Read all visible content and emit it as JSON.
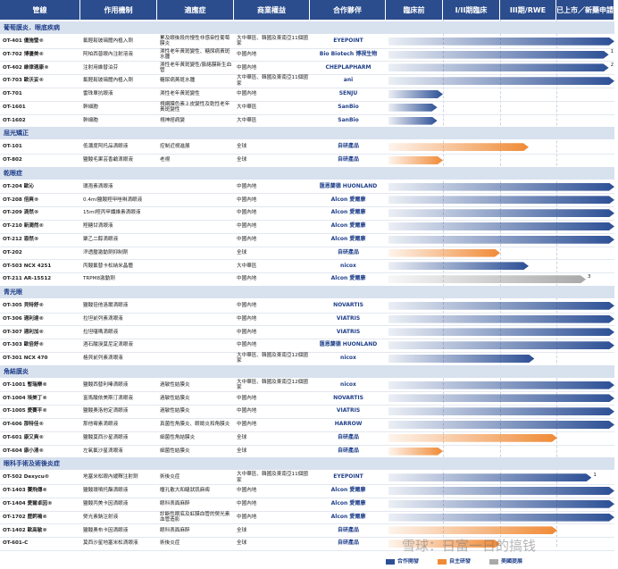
{
  "header": {
    "columns": [
      "管線",
      "作用機制",
      "適應症",
      "商業權益",
      "合作夥伴",
      "臨床前",
      "I/II期臨床",
      "III期/RWE",
      "已上市／新藥申請"
    ]
  },
  "sections": [
    {
      "title": "葡萄膜炎．眼底疾病",
      "rows": [
        {
          "pipeline": "OT-401 優施瑩®",
          "mechanism": "氟輕鬆玻璃體內植入劑",
          "indication": "累及眼後段的慢性非感染性葡萄膜炎",
          "rights": "大中華區、韓國及東南亞11個國家",
          "partner": "EYEPOINT",
          "progress": 4,
          "color": "#2c4f95"
        },
        {
          "pipeline": "OT-702 博優美®",
          "mechanism": "阿柏西普眼內注射溶液",
          "indication": "濕性老年黃斑變性、糖尿病黃斑水腫",
          "rights": "中國內地",
          "partner": "Bio Biotech 博視生物",
          "progress": 3.9,
          "color": "#2c4f95",
          "note": "1"
        },
        {
          "pipeline": "OT-402 維律適康®",
          "mechanism": "注射用維替泊芬",
          "indication": "濕性老年黃斑變性/脈絡膜新生血管",
          "rights": "中國內地",
          "partner": "CHEPLAPHARM",
          "progress": 3.9,
          "color": "#2c4f95",
          "note": "2"
        },
        {
          "pipeline": "OT-703 歐沃妥®",
          "mechanism": "氟輕鬆玻璃體內植入劑",
          "indication": "糖尿病黃斑水腫",
          "rights": "大中華區、韓國及東南亞11個國家",
          "partner": "ani",
          "progress": 4,
          "color": "#2c4f95"
        },
        {
          "pipeline": "OT-701",
          "mechanism": "雷珠單抗眼液",
          "indication": "濕性老年黃斑變性",
          "rights": "中國內地",
          "partner": "SENJU",
          "progress": 1,
          "color": "#2c4f95"
        },
        {
          "pipeline": "OT-1601",
          "mechanism": "幹細胞",
          "indication": "視網膜色素上皮變性及乾性老年黃斑變性",
          "rights": "大中華區",
          "partner": "SanBio",
          "progress": 0.9,
          "color": "#2c4f95"
        },
        {
          "pipeline": "OT-1602",
          "mechanism": "幹細胞",
          "indication": "視神經病變",
          "rights": "大中華區",
          "partner": "SanBio",
          "progress": 0.9,
          "color": "#2c4f95"
        }
      ]
    },
    {
      "title": "屈光矯正",
      "rows": [
        {
          "pipeline": "OT-101",
          "mechanism": "低濃度阿托品滴眼液",
          "indication": "控制近視進展",
          "rights": "全球",
          "partner": "自研產品",
          "progress": 2.5,
          "color": "#f08a36"
        },
        {
          "pipeline": "OT-802",
          "mechanism": "鹽酸毛果芸香鹼滴眼液",
          "indication": "老視",
          "rights": "全球",
          "partner": "自研產品",
          "progress": 1,
          "color": "#f08a36"
        }
      ]
    },
    {
      "title": "乾眼症",
      "rows": [
        {
          "pipeline": "OT-204 歐沁",
          "mechanism": "環孢素滴眼液",
          "indication": "",
          "rights": "中國內地",
          "partner": "匯恩蘭德 HUONLAND",
          "progress": 4,
          "color": "#2c4f95"
        },
        {
          "pipeline": "OT-208 倍爽®",
          "mechanism": "0.4ml鹽酸羥甲唑啉滴眼液",
          "indication": "",
          "rights": "中國內地",
          "partner": "Alcon 愛爾康",
          "progress": 4,
          "color": "#2c4f95"
        },
        {
          "pipeline": "OT-209 滴然®",
          "mechanism": "15ml羥丙甲纖維素滴眼液",
          "indication": "",
          "rights": "中國內地",
          "partner": "Alcon 愛爾康",
          "progress": 4,
          "color": "#2c4f95"
        },
        {
          "pipeline": "OT-210 新潤然®",
          "mechanism": "羥糖甘滴眼液",
          "indication": "",
          "rights": "中國內地",
          "partner": "Alcon 愛爾康",
          "progress": 4,
          "color": "#2c4f95"
        },
        {
          "pipeline": "OT-212 恩然®",
          "mechanism": "聚乙二醇滴眼液",
          "indication": "",
          "rights": "中國內地",
          "partner": "Alcon 愛爾康",
          "progress": 4,
          "color": "#2c4f95"
        },
        {
          "pipeline": "OT-202",
          "mechanism": "滲透壓激動劑抑制劑",
          "indication": "",
          "rights": "全球",
          "partner": "自研產品",
          "progress": 2,
          "color": "#f08a36"
        },
        {
          "pipeline": "OT-503 NCX 4251",
          "mechanism": "丙酸氟替卡松納米晶體",
          "indication": "",
          "rights": "大中華區",
          "partner": "nicox",
          "progress": 2.5,
          "color": "#2c4f95"
        },
        {
          "pipeline": "OT-211 AR-15512",
          "mechanism": "TRPM8激動劑",
          "indication": "",
          "rights": "中國內地",
          "partner": "Alcon 愛爾康",
          "progress": 3.5,
          "color": "#a9a9a9",
          "note": "3"
        }
      ]
    },
    {
      "title": "青光眼",
      "rows": [
        {
          "pipeline": "OT-305 貝特舒®",
          "mechanism": "鹽酸倍他洛爾滴眼液",
          "indication": "",
          "rights": "中國內地",
          "partner": "NOVARTIS",
          "progress": 4,
          "color": "#2c4f95"
        },
        {
          "pipeline": "OT-306 適利達®",
          "mechanism": "拉坦前列素滴眼液",
          "indication": "",
          "rights": "中國內地",
          "partner": "VIATRIS",
          "progress": 4,
          "color": "#2c4f95"
        },
        {
          "pipeline": "OT-307 適利加®",
          "mechanism": "拉坦噻嗎滴眼液",
          "indication": "",
          "rights": "中國內地",
          "partner": "VIATRIS",
          "progress": 4,
          "color": "#2c4f95"
        },
        {
          "pipeline": "OT-303 歐倍舒®",
          "mechanism": "酒石酸溴莫尼定滴眼液",
          "indication": "",
          "rights": "中國內地",
          "partner": "匯恩蘭德 HUONLAND",
          "progress": 4,
          "color": "#2c4f95"
        },
        {
          "pipeline": "OT-301 NCX 470",
          "mechanism": "格貝前列素滴眼液",
          "indication": "",
          "rights": "大中華區、韓國及東南亞12個國家",
          "partner": "nicox",
          "progress": 2.6,
          "color": "#2c4f95"
        }
      ]
    },
    {
      "title": "角結膜炎",
      "rows": [
        {
          "pipeline": "OT-1001 暫瑞樂®",
          "mechanism": "鹽酸西替利嗪滴眼液",
          "indication": "過敏性結膜炎",
          "rights": "大中華區、韓國及東南亞12個國家",
          "partner": "nicox",
          "progress": 4,
          "color": "#2c4f95"
        },
        {
          "pipeline": "OT-1004 埃美丁®",
          "mechanism": "富馬酸依美斯汀滴眼液",
          "indication": "過敏性結膜炎",
          "rights": "中國內地",
          "partner": "NOVARTIS",
          "progress": 4,
          "color": "#2c4f95"
        },
        {
          "pipeline": "OT-1005 愛賽平®",
          "mechanism": "鹽酸奧洛他定滴眼液",
          "indication": "過敏性結膜炎",
          "rights": "中國內地",
          "partner": "VIATRIS",
          "progress": 4,
          "color": "#2c4f95"
        },
        {
          "pipeline": "OT-606 那特佳®",
          "mechanism": "那他霉素滴眼液",
          "indication": "真菌性角膜炎、眼瞼炎和角膜炎",
          "rights": "中國內地",
          "partner": "HARROW",
          "progress": 4,
          "color": "#2c4f95"
        },
        {
          "pipeline": "OT-601 康又爽®",
          "mechanism": "鹽酸莫西沙星滴眼液",
          "indication": "細菌性角結膜炎",
          "rights": "全球",
          "partner": "自研產品",
          "progress": 3,
          "color": "#f08a36"
        },
        {
          "pipeline": "OT-604 康小清®",
          "mechanism": "左氧氟沙星滴眼液",
          "indication": "細菌性結膜炎",
          "rights": "全球",
          "partner": "自研產品",
          "progress": 1,
          "color": "#f08a36"
        }
      ]
    },
    {
      "title": "眼科手術及術後炎症",
      "rows": [
        {
          "pipeline": "OT-502 Dexycu®",
          "mechanism": "地塞米松眼內緩釋注射劑",
          "indication": "術後炎症",
          "rights": "大中華區、韓國及東南亞11個國家",
          "partner": "EYEPOINT",
          "progress": 3.6,
          "color": "#2c4f95",
          "note": "1"
        },
        {
          "pipeline": "OT-1403 賽飛傳®",
          "mechanism": "鹽酸環噴托酯滴眼液",
          "indication": "瞳孔散大和睫狀肌麻痺",
          "rights": "中國內地",
          "partner": "Alcon 愛爾康",
          "progress": 4,
          "color": "#2c4f95"
        },
        {
          "pipeline": "OT-1404 愛爾卓因®",
          "mechanism": "鹽酸丙美卡因滴眼液",
          "indication": "眼科表面麻醉",
          "rights": "中國內地",
          "partner": "Alcon 愛爾康",
          "progress": 4,
          "color": "#2c4f95"
        },
        {
          "pipeline": "OT-1702 歷鈣鳴®",
          "mechanism": "熒光素鈉注射液",
          "indication": "診斷性眼底及虹膜血管的熒光素血管造影",
          "rights": "中國內地",
          "partner": "Alcon 愛爾康",
          "progress": 4,
          "color": "#2c4f95"
        },
        {
          "pipeline": "OT-1402 歐高敏®",
          "mechanism": "鹽酸奧布卡因滴眼液",
          "indication": "眼科表面麻醉",
          "rights": "全球",
          "partner": "自研產品",
          "progress": 3,
          "color": "#f08a36"
        },
        {
          "pipeline": "OT-601-C",
          "mechanism": "莫西沙星地塞米松滴眼液",
          "indication": "術後炎症",
          "rights": "全球",
          "partner": "自研產品",
          "progress": 2,
          "color": "#f08a36"
        }
      ]
    }
  ],
  "legend": [
    {
      "label": "合作開發",
      "color": "#2c4f95"
    },
    {
      "label": "自主研發",
      "color": "#f08a36"
    },
    {
      "label": "美國提展",
      "color": "#a9a9a9"
    }
  ],
  "watermark": "雪球：日富一日的搞钱"
}
